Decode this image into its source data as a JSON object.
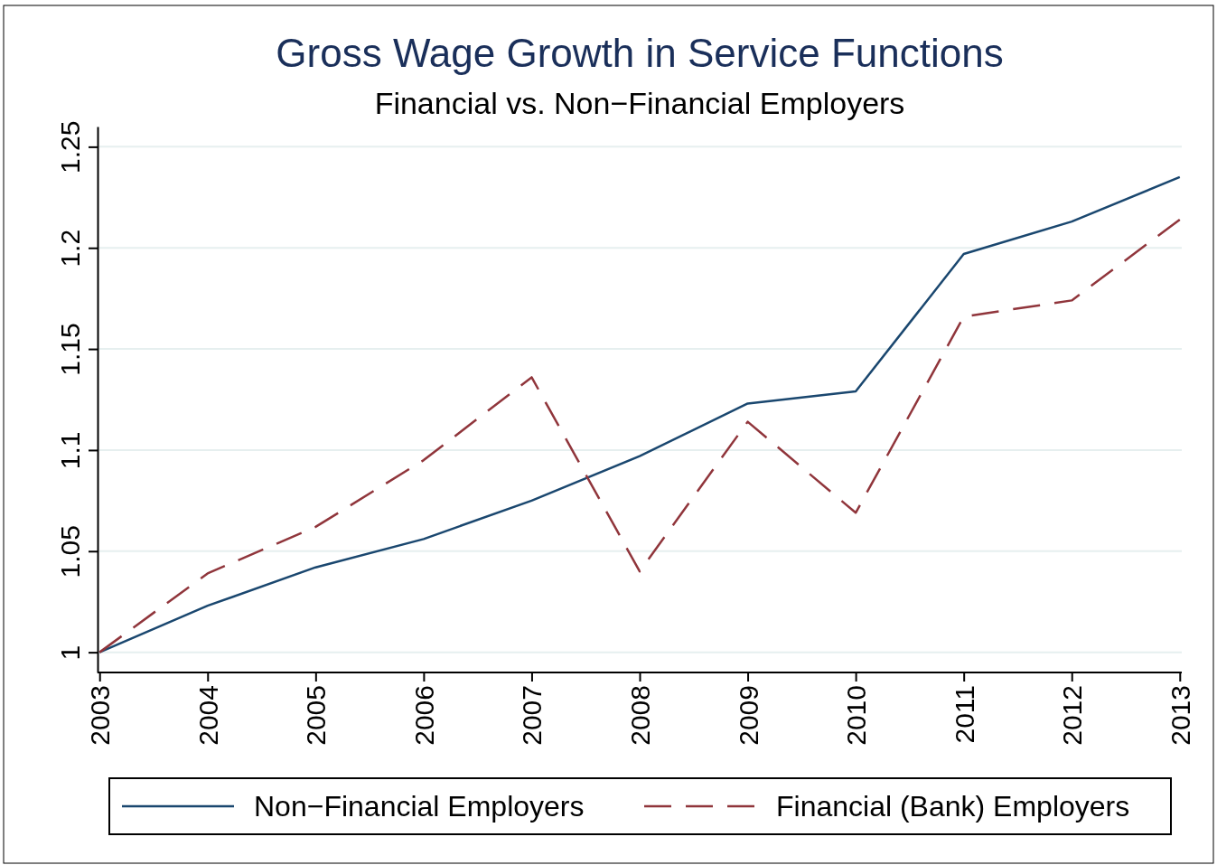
{
  "chart_data": {
    "type": "line",
    "title": "Gross Wage Growth in Service Functions",
    "subtitle": "Financial vs. Non−Financial Employers",
    "categories": [
      "2003",
      "2004",
      "2005",
      "2006",
      "2007",
      "2008",
      "2009",
      "2010",
      "2011",
      "2012",
      "2013"
    ],
    "series": [
      {
        "name": "Non−Financial Employers",
        "color": "#1a476f",
        "line_style": "solid",
        "values": [
          1.0,
          1.023,
          1.042,
          1.056,
          1.075,
          1.097,
          1.123,
          1.129,
          1.197,
          1.213,
          1.235
        ]
      },
      {
        "name": "Financial (Bank) Employers",
        "color": "#90353b",
        "line_style": "dashed",
        "values": [
          1.0,
          1.039,
          1.062,
          1.095,
          1.136,
          1.04,
          1.114,
          1.069,
          1.166,
          1.174,
          1.214
        ]
      }
    ],
    "ylim": [
      0.99,
      1.26
    ],
    "yticks": [
      1,
      1.05,
      1.1,
      1.15,
      1.2,
      1.25
    ],
    "grid": "y",
    "legend": "bottom",
    "marker": "none"
  }
}
